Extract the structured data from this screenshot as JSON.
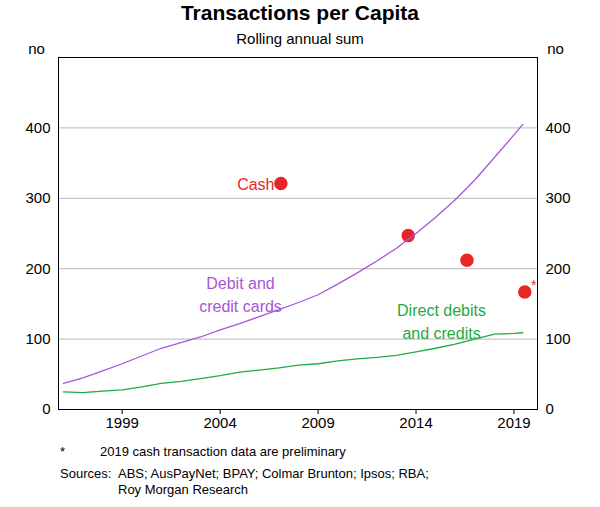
{
  "chart_data": {
    "type": "line",
    "title": "Transactions per Capita",
    "subtitle": "Rolling annual sum",
    "ylabel": "no",
    "y2label": "no",
    "xlim": [
      1995.75,
      2020.2
    ],
    "xticks": [
      1999,
      2004,
      2009,
      2014,
      2019
    ],
    "ylim": [
      0,
      500
    ],
    "yticks": [
      0,
      100,
      200,
      300,
      400
    ],
    "y2lim": [
      0,
      500
    ],
    "y2ticks": [
      0,
      100,
      200,
      300,
      400
    ],
    "grid": true,
    "series": [
      {
        "name": "Cash",
        "type": "scatter",
        "marker": "circle",
        "color": "#e8262a",
        "x": [
          2007.1,
          2013.6,
          2016.6,
          2019.55
        ],
        "values": [
          321,
          247,
          212,
          167
        ]
      },
      {
        "name": "Debit and\ncredit cards",
        "type": "line",
        "color": "#a855d8",
        "x": [
          1996,
          1997,
          1998,
          1999,
          2000,
          2001,
          2002,
          2003,
          2004,
          2005,
          2006,
          2007,
          2008,
          2009,
          2010,
          2011,
          2012,
          2013,
          2014,
          2015,
          2016,
          2017,
          2018,
          2019,
          2019.45
        ],
        "values": [
          37,
          45,
          55,
          65,
          76,
          87,
          95,
          103,
          113,
          122,
          132,
          142,
          152,
          163,
          178,
          194,
          211,
          229,
          250,
          273,
          298,
          326,
          358,
          390,
          405
        ]
      },
      {
        "name": "Direct debits\nand credits",
        "type": "line",
        "color": "#22aa44",
        "x": [
          1996,
          1997,
          1998,
          1999,
          2000,
          2001,
          2002,
          2003,
          2004,
          2005,
          2006,
          2007,
          2008,
          2009,
          2010,
          2011,
          2012,
          2013,
          2014,
          2015,
          2016,
          2017,
          2018,
          2019,
          2019.45
        ],
        "values": [
          25,
          24,
          26,
          28,
          32,
          37,
          40,
          44,
          48,
          53,
          56,
          59,
          63,
          65,
          69,
          72,
          74,
          77,
          82,
          87,
          93,
          100,
          107,
          108,
          109
        ]
      }
    ],
    "annotations": [
      {
        "text": "*",
        "x": 2019.55,
        "y": 167,
        "color": "#e8262a"
      }
    ],
    "footnote": {
      "symbol": "*",
      "text": "2019 cash transaction data are preliminary"
    },
    "sources": {
      "label": "Sources:",
      "text": "ABS; AusPayNet; BPAY; Colmar Brunton; Ipsos; RBA; Roy Morgan Research"
    }
  }
}
